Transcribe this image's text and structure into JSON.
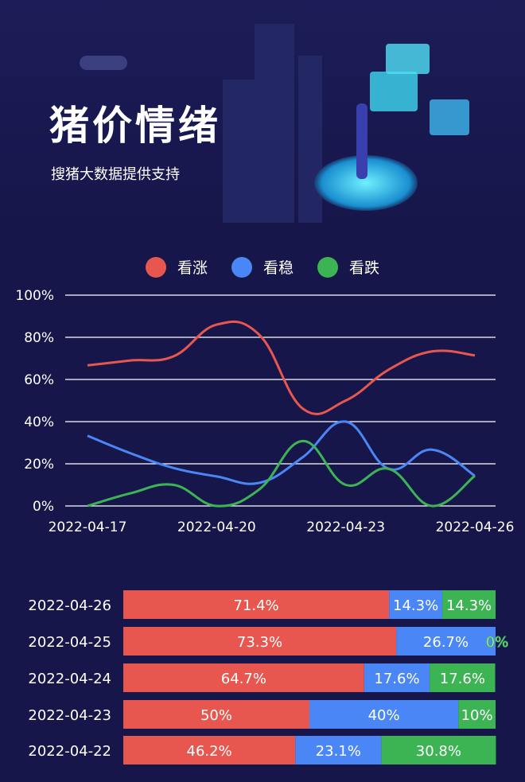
{
  "header": {
    "title": "猪价情绪",
    "subtitle": "搜猪大数据提供支持"
  },
  "colors": {
    "up": "#e8574f",
    "stable": "#4a86f5",
    "down": "#3db454",
    "grid": "#ffffff"
  },
  "chart_data": [
    {
      "type": "line",
      "legend": [
        "看涨",
        "看稳",
        "看跌"
      ],
      "legend_placement": "top-center",
      "x": [
        "2022-04-17",
        "2022-04-18",
        "2022-04-19",
        "2022-04-20",
        "2022-04-21",
        "2022-04-22",
        "2022-04-23",
        "2022-04-24",
        "2022-04-25",
        "2022-04-26"
      ],
      "x_tick_labels": [
        "2022-04-17",
        "2022-04-20",
        "2022-04-23",
        "2022-04-26"
      ],
      "y_tick_labels": [
        "0%",
        "20%",
        "40%",
        "60%",
        "80%",
        "100%"
      ],
      "ylim": [
        0,
        100
      ],
      "grid": true,
      "series": [
        {
          "name": "看涨",
          "values": [
            66.7,
            69,
            71,
            86,
            81,
            46.2,
            50,
            64.7,
            73.3,
            71.4
          ]
        },
        {
          "name": "看稳",
          "values": [
            33.3,
            25,
            18,
            14,
            11,
            23.1,
            40,
            17.6,
            26.7,
            14.3
          ]
        },
        {
          "name": "看跌",
          "values": [
            0,
            6,
            10,
            0,
            8,
            30.8,
            10,
            17.6,
            0,
            14.3
          ]
        }
      ]
    },
    {
      "type": "bar",
      "stacked": true,
      "orientation": "horizontal",
      "categories": [
        "2022-04-26",
        "2022-04-25",
        "2022-04-24",
        "2022-04-23",
        "2022-04-22"
      ],
      "series": [
        {
          "name": "看涨",
          "values": [
            71.4,
            73.3,
            64.7,
            50,
            46.2
          ],
          "labels": [
            "71.4%",
            "73.3%",
            "64.7%",
            "50%",
            "46.2%"
          ]
        },
        {
          "name": "看稳",
          "values": [
            14.3,
            26.7,
            17.6,
            40,
            23.1
          ],
          "labels": [
            "14.3%",
            "26.7%",
            "17.6%",
            "40%",
            "23.1%"
          ]
        },
        {
          "name": "看跌",
          "values": [
            14.3,
            0,
            17.6,
            10,
            30.8
          ],
          "labels": [
            "14.3%",
            "0%",
            "17.6%",
            "10%",
            "30.8%"
          ]
        }
      ]
    }
  ]
}
